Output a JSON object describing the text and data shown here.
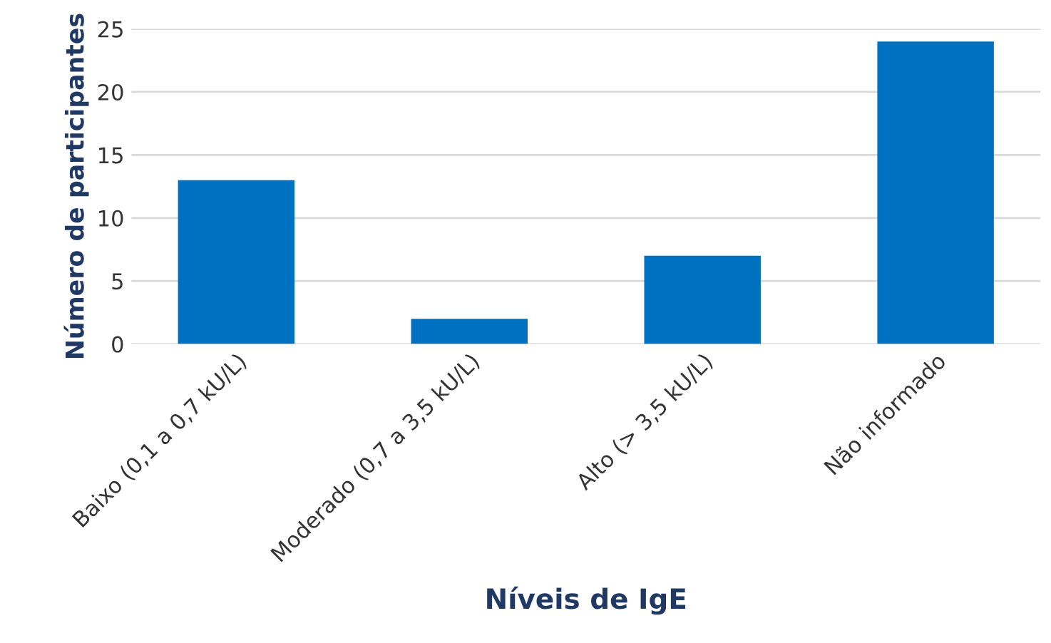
{
  "chart_data": {
    "type": "bar",
    "xlabel": "Níveis de IgE",
    "ylabel": "Número de participantes",
    "categories": [
      "Baixo (0,1 a 0,7 kU/L)",
      "Moderado (0,7 a 3,5 kU/L)",
      "Alto (> 3,5 kU/L)",
      "Não informado"
    ],
    "values": [
      13,
      2,
      7,
      24
    ],
    "color": "#0070c0",
    "ylim": [
      0,
      25
    ],
    "yticks": [
      0,
      5,
      10,
      15,
      20,
      25
    ],
    "grid": "y"
  }
}
